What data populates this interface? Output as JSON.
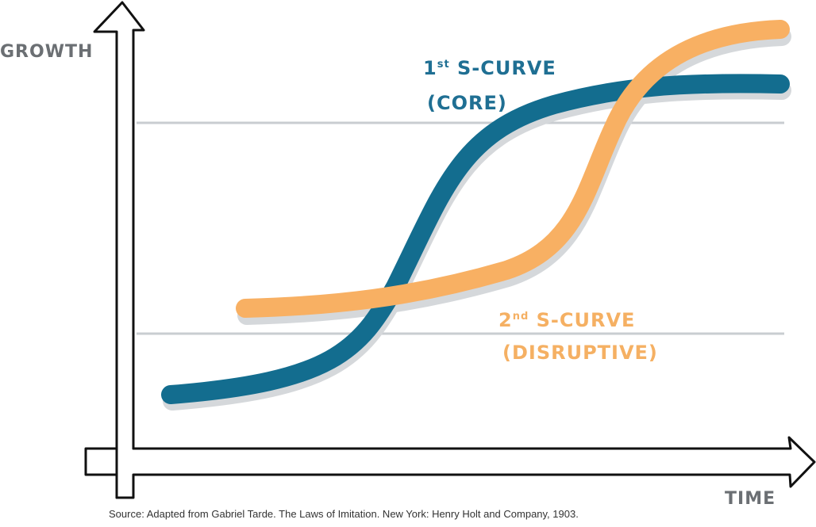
{
  "axes": {
    "y_label": "GROWTH",
    "x_label": "TIME"
  },
  "curve_core": {
    "label_num": "1",
    "label_sup": "st",
    "label_main": " S-CURVE",
    "label_sub": "(CORE)",
    "color": "#136d8f"
  },
  "curve_disruptive": {
    "label_num": "2",
    "label_sup": "nd",
    "label_main": " S-CURVE",
    "label_sub": "(DISRUPTIVE)",
    "color": "#f8b063"
  },
  "colors": {
    "outline": "#111111",
    "guide": "#c9cdd1",
    "shadow": "#d5d8db"
  },
  "source": "Source: Adapted from Gabriel Tarde. The Laws of Imitation. New York: Henry Holt and Company, 1903."
}
